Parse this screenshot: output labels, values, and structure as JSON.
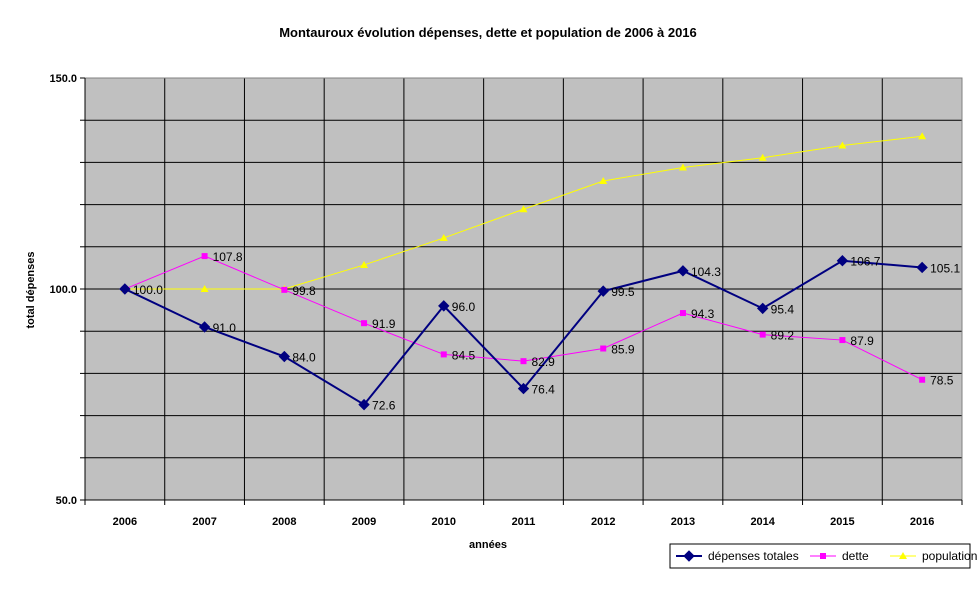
{
  "chart_data": {
    "type": "line",
    "title": "Montauroux évolution dépenses, dette et population de 2006 à 2016",
    "xlabel": "années",
    "ylabel": "total dépenses",
    "categories": [
      "2006",
      "2007",
      "2008",
      "2009",
      "2010",
      "2011",
      "2012",
      "2013",
      "2014",
      "2015",
      "2016"
    ],
    "ylim": [
      50,
      150
    ],
    "y_tick_labels": [
      "150.0",
      "100.0",
      "50.0"
    ],
    "grid": true,
    "legend_position": "bottom-right",
    "series": [
      {
        "name": "dépenses totales",
        "color": "#000080",
        "marker": "diamond",
        "values": [
          100.0,
          91.0,
          84.0,
          72.6,
          96.0,
          76.4,
          99.5,
          104.3,
          95.4,
          106.7,
          105.1
        ],
        "labels": [
          "100.0",
          "91.0",
          "84.0",
          "72.6",
          "96.0",
          "76.4",
          "99.5",
          "104.3",
          "95.4",
          "106.7",
          "105.1"
        ]
      },
      {
        "name": "dette",
        "color": "#FF00FF",
        "marker": "square",
        "values": [
          100.0,
          107.8,
          99.8,
          91.9,
          84.5,
          82.9,
          85.9,
          94.3,
          89.2,
          87.9,
          78.5
        ],
        "labels": [
          "",
          "107.8",
          "99.8",
          "91.9",
          "84.5",
          "82.9",
          "85.9",
          "94.3",
          "89.2",
          "87.9",
          "78.5"
        ]
      },
      {
        "name": "population",
        "color": "#FFFF00",
        "marker": "triangle",
        "values": [
          100.0,
          100.0,
          100.0,
          105.7,
          112.1,
          118.9,
          125.6,
          128.8,
          131.1,
          134.0,
          136.2
        ],
        "labels": []
      }
    ]
  }
}
